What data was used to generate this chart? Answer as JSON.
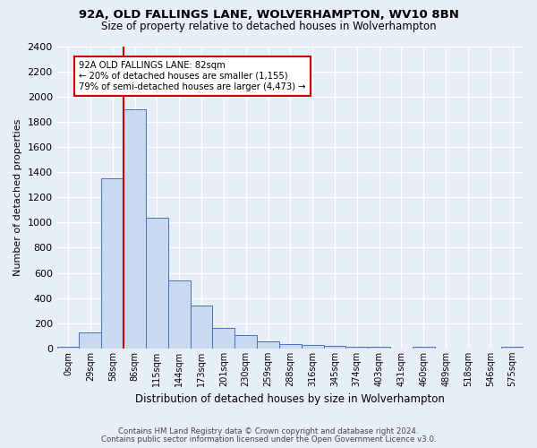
{
  "title1": "92A, OLD FALLINGS LANE, WOLVERHAMPTON, WV10 8BN",
  "title2": "Size of property relative to detached houses in Wolverhampton",
  "xlabel": "Distribution of detached houses by size in Wolverhampton",
  "ylabel": "Number of detached properties",
  "footnote1": "Contains HM Land Registry data © Crown copyright and database right 2024.",
  "footnote2": "Contains public sector information licensed under the Open Government Licence v3.0.",
  "bar_labels": [
    "0sqm",
    "29sqm",
    "58sqm",
    "86sqm",
    "115sqm",
    "144sqm",
    "173sqm",
    "201sqm",
    "230sqm",
    "259sqm",
    "288sqm",
    "316sqm",
    "345sqm",
    "374sqm",
    "403sqm",
    "431sqm",
    "460sqm",
    "489sqm",
    "518sqm",
    "546sqm",
    "575sqm"
  ],
  "bar_values": [
    15,
    130,
    1350,
    1900,
    1040,
    540,
    340,
    160,
    105,
    55,
    35,
    30,
    20,
    15,
    10,
    0,
    15,
    0,
    0,
    0,
    15
  ],
  "bar_color": "#c9d9f0",
  "bar_edge_color": "#4472c4",
  "property_label": "92A OLD FALLINGS LANE: 82sqm",
  "annotation_line1": "← 20% of detached houses are smaller (1,155)",
  "annotation_line2": "79% of semi-detached houses are larger (4,473) →",
  "vline_color": "#cc0000",
  "vline_x_index": 2.5,
  "annotation_box_color": "#ffffff",
  "annotation_box_edge": "#cc0000",
  "ylim": [
    0,
    2400
  ],
  "yticks": [
    0,
    200,
    400,
    600,
    800,
    1000,
    1200,
    1400,
    1600,
    1800,
    2000,
    2200,
    2400
  ],
  "bg_color": "#e8eef8",
  "grid_color": "#ffffff",
  "bar_width": 1.0
}
